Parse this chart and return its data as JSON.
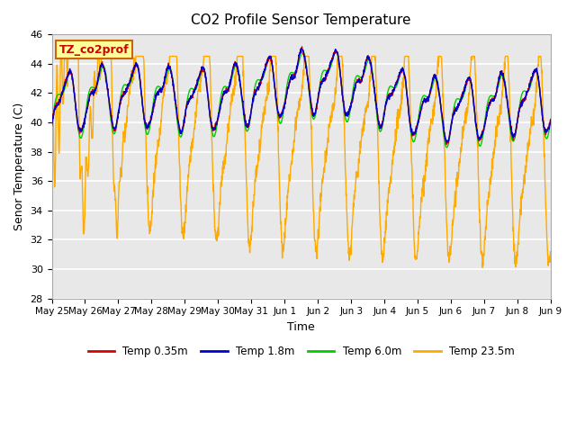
{
  "title": "CO2 Profile Sensor Temperature",
  "xlabel": "Time",
  "ylabel": "Senor Temperature (C)",
  "ylim": [
    28,
    46
  ],
  "yticks": [
    28,
    30,
    32,
    34,
    36,
    38,
    40,
    42,
    44,
    46
  ],
  "annotation_label": "TZ_co2prof",
  "annotation_box_color": "#ffff99",
  "annotation_border_color": "#cc6600",
  "annotation_text_color": "#cc0000",
  "line_colors": {
    "shallow1": "#dd0000",
    "shallow2": "#0000cc",
    "mid": "#00cc00",
    "deep": "#ffaa00"
  },
  "legend_labels": [
    "Temp 0.35m",
    "Temp 1.8m",
    "Temp 6.0m",
    "Temp 23.5m"
  ],
  "legend_colors": [
    "#dd0000",
    "#0000cc",
    "#00cc00",
    "#ffaa00"
  ],
  "bg_color": "#e8e8e8",
  "grid_color": "#ffffff",
  "n_points": 1800
}
